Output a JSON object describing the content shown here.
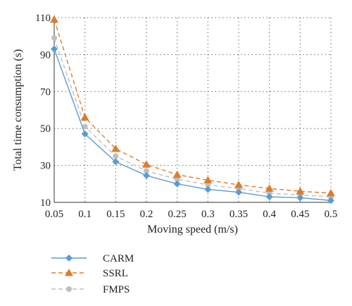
{
  "chart_data": {
    "type": "line",
    "title": "",
    "xlabel": "Moving speed (m/s)",
    "ylabel": "Total time consumption (s)",
    "x": [
      0.05,
      0.1,
      0.15,
      0.2,
      0.25,
      0.3,
      0.35,
      0.4,
      0.45,
      0.5
    ],
    "x_tick_labels": [
      "0.05",
      "0.1",
      "0.15",
      "0.2",
      "0.25",
      "0.3",
      "0.35",
      "0.4",
      "0.45",
      "0.5"
    ],
    "y_ticks": [
      10,
      30,
      50,
      70,
      90,
      110
    ],
    "y_tick_labels": [
      "10",
      "30",
      "50",
      "70",
      "90",
      "110"
    ],
    "xlim": [
      0.05,
      0.5
    ],
    "ylim": [
      10,
      110
    ],
    "grid": "dotted-both",
    "legend_position": "below",
    "series": [
      {
        "name": "CARM",
        "color": "#5b9bd5",
        "line_style": "solid",
        "marker": "diamond",
        "values": [
          93,
          47,
          32,
          24.5,
          20,
          17,
          15.5,
          13,
          12.5,
          11
        ]
      },
      {
        "name": "SSRL",
        "color": "#e07b2a",
        "line_style": "dashed",
        "marker": "triangle",
        "values": [
          109,
          56,
          39,
          30.5,
          25,
          22,
          19.5,
          17.5,
          16,
          15
        ]
      },
      {
        "name": "FMPS",
        "color": "#bfbfbf",
        "line_style": "dashed",
        "marker": "circle",
        "values": [
          99,
          51,
          35,
          27,
          22.5,
          19.5,
          17.5,
          15,
          14,
          13
        ]
      }
    ]
  }
}
